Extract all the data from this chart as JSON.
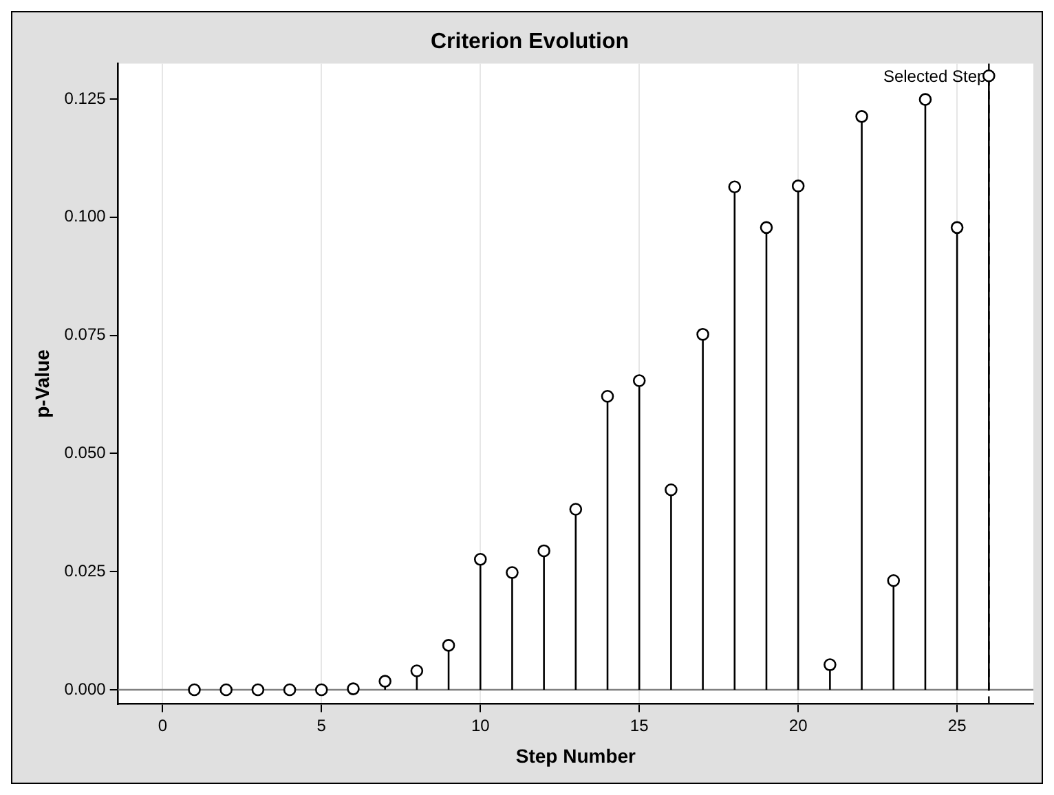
{
  "chart_data": {
    "type": "lollipop",
    "title": "Criterion Evolution",
    "xlabel": "Step Number",
    "ylabel": "p-Value",
    "x": [
      1,
      2,
      3,
      4,
      5,
      6,
      7,
      8,
      9,
      10,
      11,
      12,
      13,
      14,
      15,
      16,
      17,
      18,
      19,
      20,
      21,
      22,
      23,
      24,
      25,
      26
    ],
    "series": [
      {
        "color": "#000000",
        "values": [
          0,
          0,
          0,
          0,
          0,
          0.0002,
          0.0018,
          0.004,
          0.0094,
          0.0276,
          0.0248,
          0.0294,
          0.0382,
          0.0621,
          0.0654,
          0.0423,
          0.0752,
          0.1064,
          0.0978,
          0.1066,
          0.0053,
          0.1213,
          0.0231,
          0.1249,
          0.0978,
          0.1299
        ]
      }
    ],
    "xlim": [
      -1.4,
      27.4
    ],
    "xticks": [
      0,
      5,
      10,
      15,
      20,
      25
    ],
    "ylim": [
      -0.003,
      0.1325
    ],
    "yticks": [
      {
        "value": 0,
        "label": "0.000"
      },
      {
        "value": 0.025,
        "label": "0.025"
      },
      {
        "value": 0.05,
        "label": "0.050"
      },
      {
        "value": 0.075,
        "label": "0.075"
      },
      {
        "value": 0.1,
        "label": "0.100"
      },
      {
        "value": 0.125,
        "label": "0.125"
      }
    ],
    "grid": "x",
    "legend": false,
    "marker": "circle",
    "ref_lines": [
      {
        "axis": "y",
        "value": 0,
        "color": "#808080",
        "line_style": "solid"
      },
      {
        "axis": "x",
        "value": 26,
        "label": "Selected Step",
        "color": "#000000",
        "line_style": "dashed"
      }
    ]
  }
}
